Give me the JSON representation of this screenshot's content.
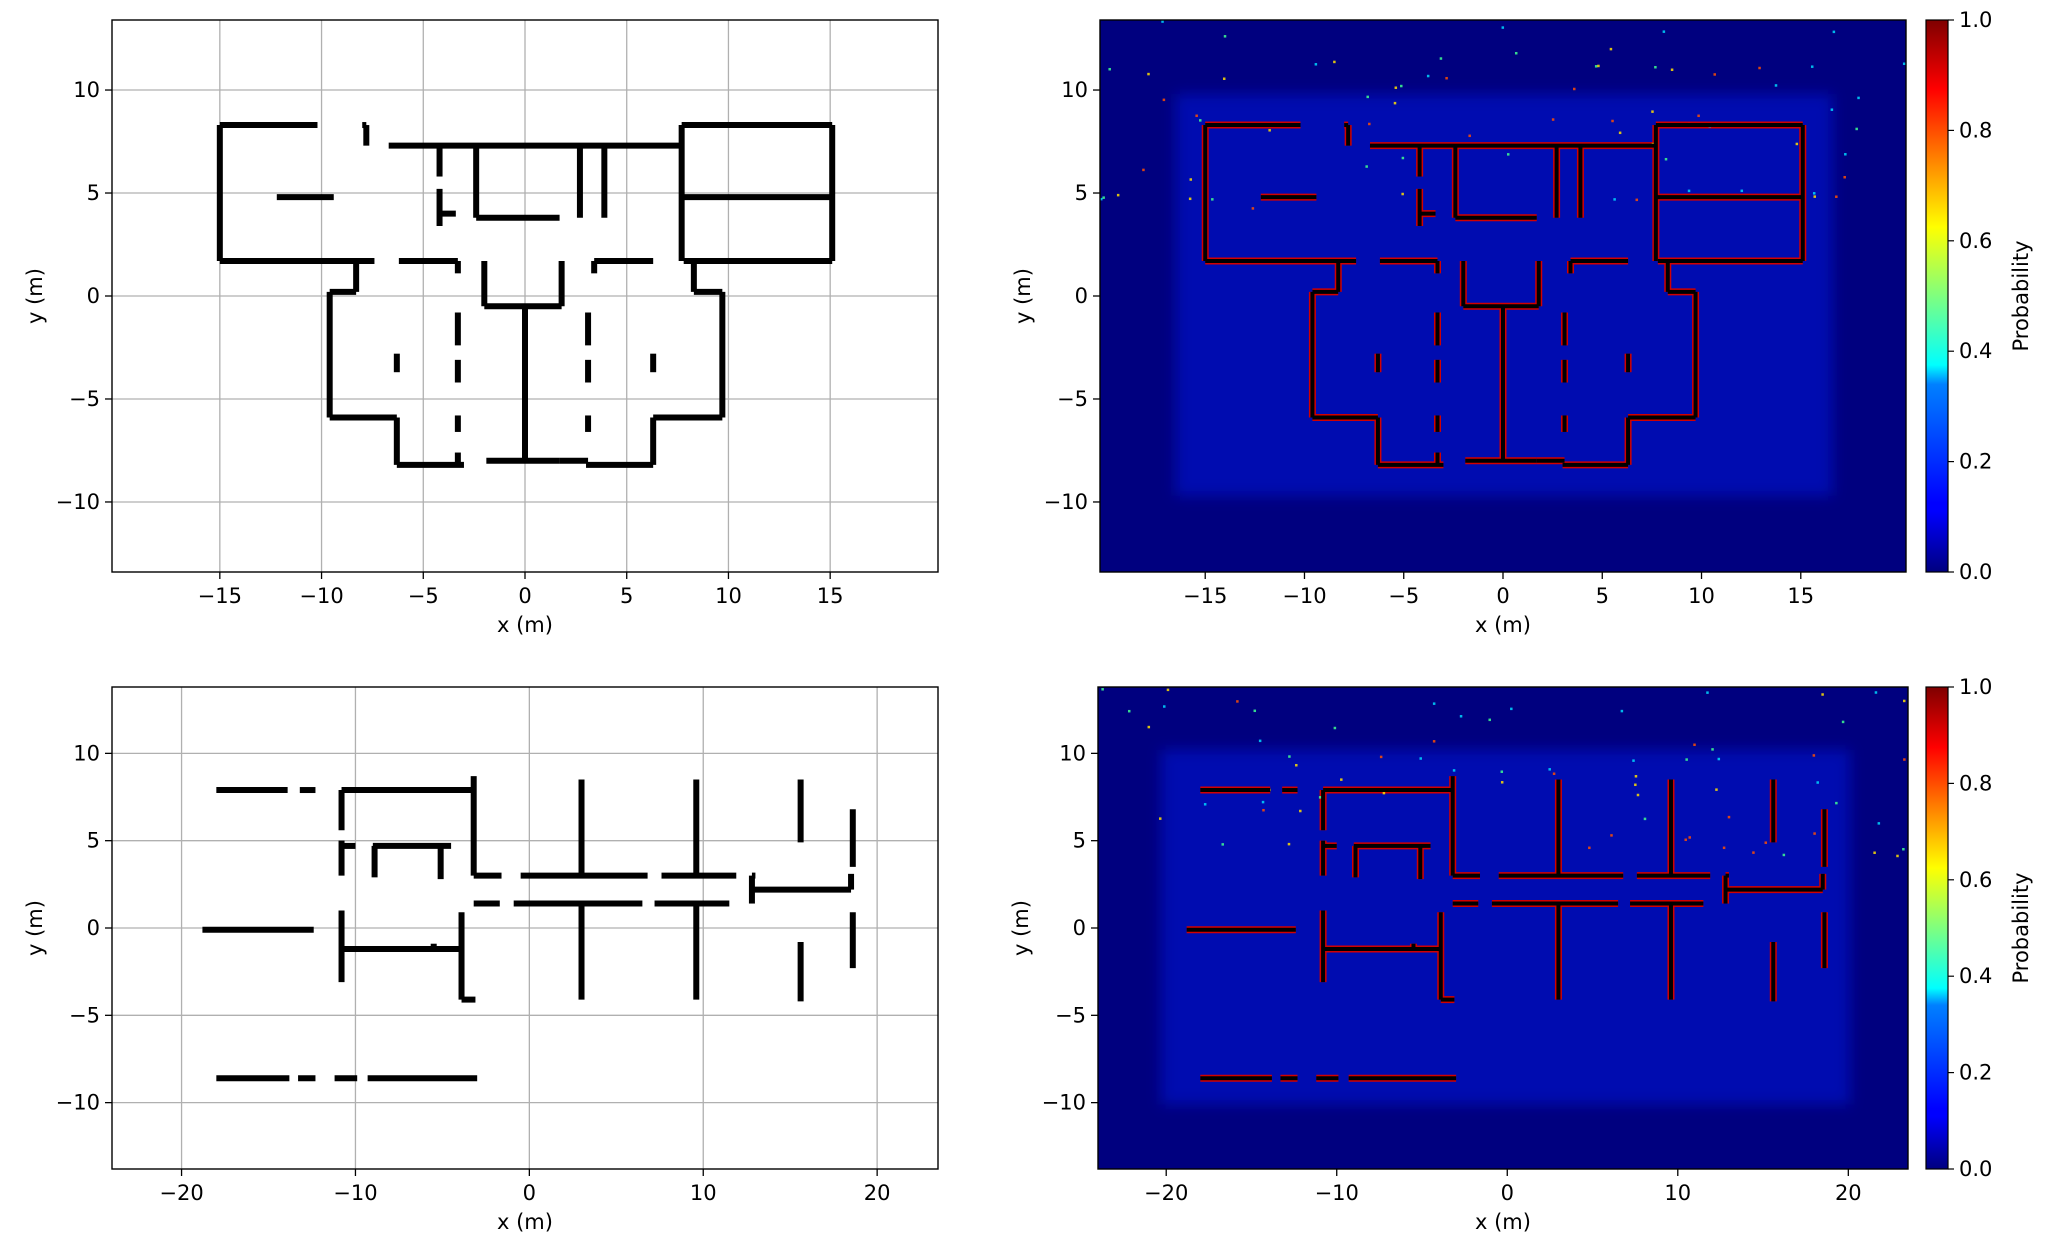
{
  "chart_data": [
    {
      "type": "line",
      "panel": "top-left",
      "xlabel": "x (m)",
      "ylabel": "y (m)",
      "xlim": [
        -20.3,
        20.3
      ],
      "ylim": [
        -13.4,
        13.4
      ],
      "xticks": [
        -15,
        -10,
        -5,
        0,
        5,
        10,
        15
      ],
      "yticks": [
        -10,
        -5,
        0,
        5,
        10
      ],
      "grid": true,
      "walls": [
        [
          [
            -15,
            8.3
          ],
          [
            -10.2,
            8.3
          ]
        ],
        [
          [
            -8,
            8.3
          ],
          [
            -7.8,
            8.3
          ]
        ],
        [
          [
            -7.8,
            8.3
          ],
          [
            -7.8,
            7.3
          ]
        ],
        [
          [
            -6.7,
            7.3
          ],
          [
            7.7,
            7.3
          ]
        ],
        [
          [
            7.7,
            8.3
          ],
          [
            15.1,
            8.3
          ]
        ],
        [
          [
            -15,
            1.7
          ],
          [
            -7.4,
            1.7
          ]
        ],
        [
          [
            -6.2,
            1.7
          ],
          [
            -3.3,
            1.7
          ]
        ],
        [
          [
            3.4,
            1.7
          ],
          [
            6.3,
            1.7
          ]
        ],
        [
          [
            7.8,
            1.7
          ],
          [
            15.1,
            1.7
          ]
        ],
        [
          [
            -15,
            8.3
          ],
          [
            -15,
            1.7
          ]
        ],
        [
          [
            15.1,
            8.3
          ],
          [
            15.1,
            1.7
          ]
        ],
        [
          [
            7.7,
            8.3
          ],
          [
            7.7,
            1.7
          ]
        ],
        [
          [
            -12.2,
            4.8
          ],
          [
            -9.4,
            4.8
          ]
        ],
        [
          [
            7.7,
            4.8
          ],
          [
            15.1,
            4.8
          ]
        ],
        [
          [
            -2.4,
            7.3
          ],
          [
            -2.4,
            3.8
          ]
        ],
        [
          [
            -2.4,
            3.8
          ],
          [
            1.7,
            3.8
          ]
        ],
        [
          [
            2.7,
            7.3
          ],
          [
            2.7,
            3.8
          ]
        ],
        [
          [
            3.9,
            7.3
          ],
          [
            3.9,
            3.8
          ]
        ],
        [
          [
            -4.2,
            7.3
          ],
          [
            -4.2,
            5.8
          ]
        ],
        [
          [
            -4.2,
            5.2
          ],
          [
            -4.2,
            3.4
          ]
        ],
        [
          [
            -4.2,
            4.0
          ],
          [
            -3.4,
            4.0
          ]
        ],
        [
          [
            -8.3,
            1.7
          ],
          [
            -8.3,
            0.2
          ]
        ],
        [
          [
            -9.6,
            0.2
          ],
          [
            -8.3,
            0.2
          ]
        ],
        [
          [
            -9.6,
            0.2
          ],
          [
            -9.6,
            -5.9
          ]
        ],
        [
          [
            -9.6,
            -5.9
          ],
          [
            -6.3,
            -5.9
          ]
        ],
        [
          [
            -6.3,
            -5.9
          ],
          [
            -6.3,
            -8.2
          ]
        ],
        [
          [
            -6.3,
            -8.2
          ],
          [
            -3.0,
            -8.2
          ]
        ],
        [
          [
            8.3,
            1.7
          ],
          [
            8.3,
            0.2
          ]
        ],
        [
          [
            8.3,
            0.2
          ],
          [
            9.7,
            0.2
          ]
        ],
        [
          [
            9.7,
            0.2
          ],
          [
            9.7,
            -5.9
          ]
        ],
        [
          [
            6.3,
            -5.9
          ],
          [
            9.7,
            -5.9
          ]
        ],
        [
          [
            6.3,
            -5.9
          ],
          [
            6.3,
            -8.2
          ]
        ],
        [
          [
            3.0,
            -8.2
          ],
          [
            6.3,
            -8.2
          ]
        ],
        [
          [
            -1.9,
            -8.0
          ],
          [
            1.7,
            -8.0
          ]
        ],
        [
          [
            1.7,
            -8.0
          ],
          [
            3.1,
            -8.0
          ]
        ],
        [
          [
            -2.0,
            1.7
          ],
          [
            -2.0,
            -0.5
          ]
        ],
        [
          [
            -2.0,
            -0.5
          ],
          [
            1.8,
            -0.5
          ]
        ],
        [
          [
            1.8,
            1.7
          ],
          [
            1.8,
            -0.5
          ]
        ],
        [
          [
            0,
            -0.5
          ],
          [
            0,
            -8.0
          ]
        ],
        [
          [
            -3.3,
            1.1
          ],
          [
            -3.3,
            1.7
          ]
        ],
        [
          [
            3.4,
            1.1
          ],
          [
            3.4,
            1.7
          ]
        ],
        [
          [
            -3.3,
            -0.8
          ],
          [
            -3.3,
            -2.4
          ]
        ],
        [
          [
            -3.3,
            -3.1
          ],
          [
            -3.3,
            -4.2
          ]
        ],
        [
          [
            -3.3,
            -5.8
          ],
          [
            -3.3,
            -6.6
          ]
        ],
        [
          [
            -3.3,
            -7.6
          ],
          [
            -3.3,
            -8.2
          ]
        ],
        [
          [
            3.1,
            -0.8
          ],
          [
            3.1,
            -2.4
          ]
        ],
        [
          [
            3.1,
            -3.1
          ],
          [
            3.1,
            -4.2
          ]
        ],
        [
          [
            3.1,
            -5.8
          ],
          [
            3.1,
            -6.6
          ]
        ],
        [
          [
            -6.3,
            -2.8
          ],
          [
            -6.3,
            -3.7
          ]
        ],
        [
          [
            6.3,
            -2.8
          ],
          [
            6.3,
            -3.7
          ]
        ]
      ]
    },
    {
      "type": "heatmap",
      "panel": "top-right",
      "xlabel": "x (m)",
      "ylabel": "y (m)",
      "xlim": [
        -20.3,
        20.3
      ],
      "ylim": [
        -13.4,
        13.4
      ],
      "xticks": [
        -15,
        -10,
        -5,
        0,
        5,
        10,
        15
      ],
      "yticks": [
        -10,
        -5,
        0,
        5,
        10
      ],
      "colorbar": {
        "label": "Probability",
        "range": [
          0.0,
          1.0
        ],
        "ticks": [
          "0.0",
          "0.2",
          "0.4",
          "0.6",
          "0.8",
          "1.0"
        ],
        "colormap": "jet"
      },
      "overlay": "ground-truth walls of top-left panel"
    },
    {
      "type": "line",
      "panel": "bottom-left",
      "xlabel": "x (m)",
      "ylabel": "y (m)",
      "xlim": [
        -24,
        23.5
      ],
      "ylim": [
        -13.8,
        13.8
      ],
      "xticks": [
        -20,
        -10,
        0,
        10,
        20
      ],
      "yticks": [
        -10,
        -5,
        0,
        5,
        10
      ],
      "grid": true,
      "walls": [
        [
          [
            -18,
            7.9
          ],
          [
            -13.9,
            7.9
          ]
        ],
        [
          [
            -13.2,
            7.9
          ],
          [
            -12.3,
            7.9
          ]
        ],
        [
          [
            -10.8,
            7.9
          ],
          [
            -3.2,
            7.9
          ]
        ],
        [
          [
            -3.2,
            8.7
          ],
          [
            -3.2,
            3.0
          ]
        ],
        [
          [
            -10.8,
            7.9
          ],
          [
            -10.8,
            5.6
          ]
        ],
        [
          [
            -10.8,
            5.0
          ],
          [
            -10.8,
            3.0
          ]
        ],
        [
          [
            -10.8,
            4.7
          ],
          [
            -10.0,
            4.7
          ]
        ],
        [
          [
            -9.0,
            4.7
          ],
          [
            -4.5,
            4.7
          ]
        ],
        [
          [
            -8.9,
            4.7
          ],
          [
            -8.9,
            2.9
          ]
        ],
        [
          [
            -5.1,
            4.7
          ],
          [
            -5.1,
            2.8
          ]
        ],
        [
          [
            -3.2,
            3.0
          ],
          [
            -1.6,
            3.0
          ]
        ],
        [
          [
            -0.5,
            3.0
          ],
          [
            6.8,
            3.0
          ]
        ],
        [
          [
            7.6,
            3.0
          ],
          [
            11.9,
            3.0
          ]
        ],
        [
          [
            12.8,
            3.0
          ],
          [
            13.0,
            3.0
          ]
        ],
        [
          [
            -3.2,
            1.4
          ],
          [
            -1.7,
            1.4
          ]
        ],
        [
          [
            -0.9,
            1.4
          ],
          [
            6.5,
            1.4
          ]
        ],
        [
          [
            7.2,
            1.4
          ],
          [
            11.5,
            1.4
          ]
        ],
        [
          [
            12.8,
            2.2
          ],
          [
            18.5,
            2.2
          ]
        ],
        [
          [
            12.8,
            3.0
          ],
          [
            12.8,
            1.4
          ]
        ],
        [
          [
            18.5,
            2.2
          ],
          [
            18.5,
            3.1
          ]
        ],
        [
          [
            18.6,
            6.8
          ],
          [
            18.6,
            3.5
          ]
        ],
        [
          [
            18.6,
            0.9
          ],
          [
            18.6,
            -2.3
          ]
        ],
        [
          [
            15.6,
            8.5
          ],
          [
            15.6,
            4.9
          ]
        ],
        [
          [
            15.6,
            -0.8
          ],
          [
            15.6,
            -4.2
          ]
        ],
        [
          [
            9.6,
            8.5
          ],
          [
            9.6,
            3.0
          ]
        ],
        [
          [
            9.6,
            1.4
          ],
          [
            9.6,
            -4.1
          ]
        ],
        [
          [
            3.0,
            8.5
          ],
          [
            3.0,
            3.0
          ]
        ],
        [
          [
            3.0,
            1.4
          ],
          [
            3.0,
            -4.1
          ]
        ],
        [
          [
            -18.8,
            -0.1
          ],
          [
            -12.4,
            -0.1
          ]
        ],
        [
          [
            -10.8,
            1.0
          ],
          [
            -10.8,
            -3.1
          ]
        ],
        [
          [
            -10.8,
            -1.2
          ],
          [
            -3.9,
            -1.2
          ]
        ],
        [
          [
            -5.5,
            -0.9
          ],
          [
            -5.5,
            -1.2
          ]
        ],
        [
          [
            -3.9,
            0.9
          ],
          [
            -3.9,
            -4.1
          ]
        ],
        [
          [
            -3.9,
            -4.1
          ],
          [
            -3.1,
            -4.1
          ]
        ],
        [
          [
            -18,
            -8.6
          ],
          [
            -13.8,
            -8.6
          ]
        ],
        [
          [
            -13.3,
            -8.6
          ],
          [
            -12.3,
            -8.6
          ]
        ],
        [
          [
            -11.2,
            -8.6
          ],
          [
            -9.9,
            -8.6
          ]
        ],
        [
          [
            -9.3,
            -8.6
          ],
          [
            -3.0,
            -8.6
          ]
        ]
      ]
    },
    {
      "type": "heatmap",
      "panel": "bottom-right",
      "xlabel": "x (m)",
      "ylabel": "y (m)",
      "xlim": [
        -24,
        23.5
      ],
      "ylim": [
        -13.8,
        13.8
      ],
      "xticks": [
        -20,
        -10,
        0,
        10,
        20
      ],
      "yticks": [
        -10,
        -5,
        0,
        5,
        10
      ],
      "colorbar": {
        "label": "Probability",
        "range": [
          0.0,
          1.0
        ],
        "ticks": [
          "0.0",
          "0.2",
          "0.4",
          "0.6",
          "0.8",
          "1.0"
        ],
        "colormap": "jet"
      },
      "overlay": "ground-truth walls of bottom-left panel"
    }
  ]
}
